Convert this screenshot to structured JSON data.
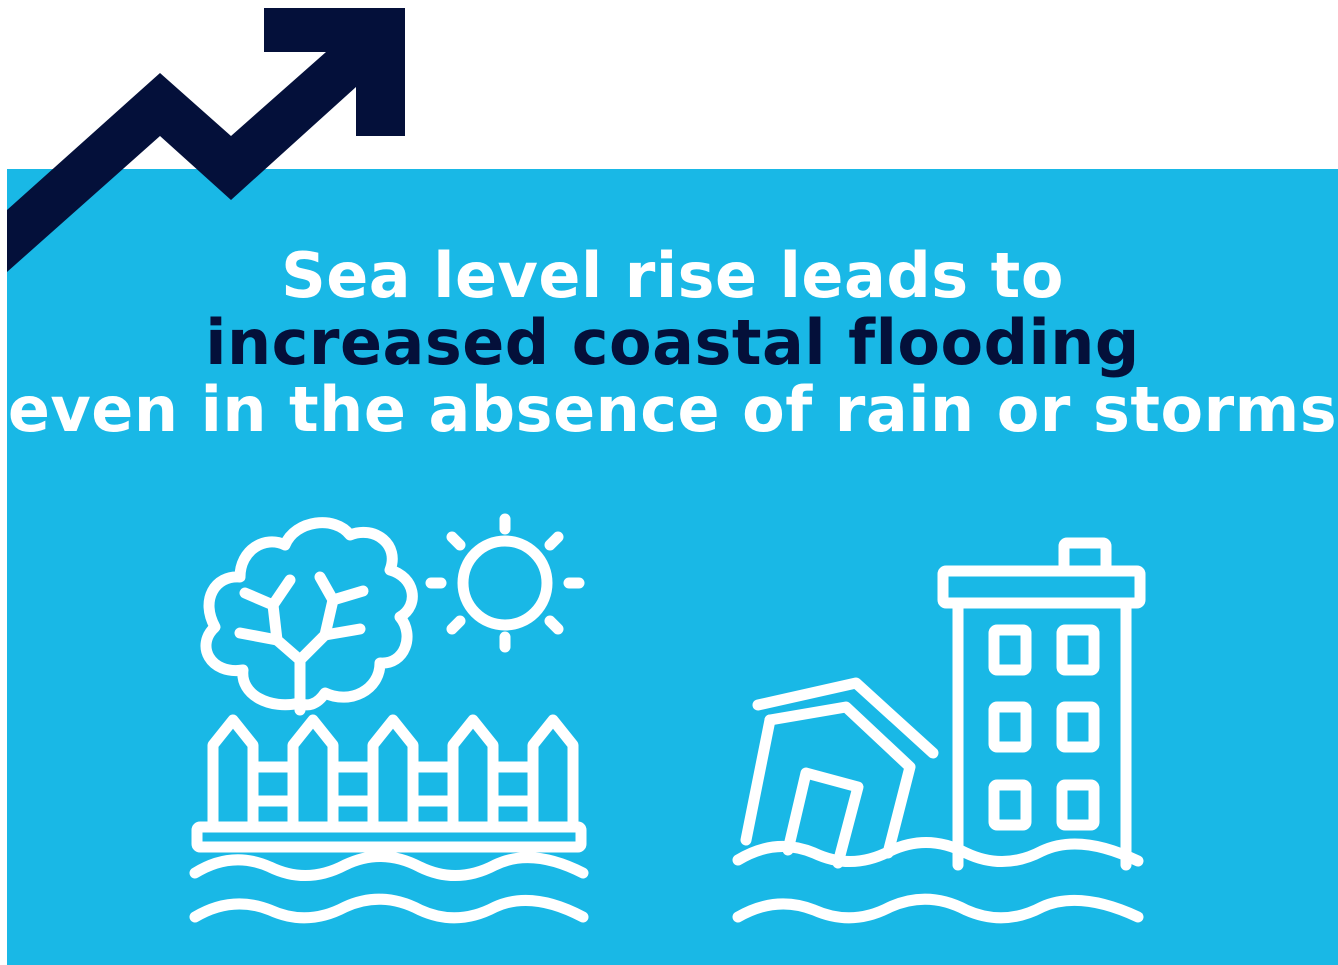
{
  "colors": {
    "panel": "#19b8e6",
    "accent_dark": "#04103a",
    "text_light": "#ffffff"
  },
  "icons": [
    "trend-up-arrow-icon",
    "tree-fence-sun-flood-icon",
    "house-building-flood-icon"
  ],
  "headline": {
    "line1": "Sea level rise leads to",
    "line2": "increased coastal flooding",
    "line3": "even in the absence of rain or storms"
  }
}
